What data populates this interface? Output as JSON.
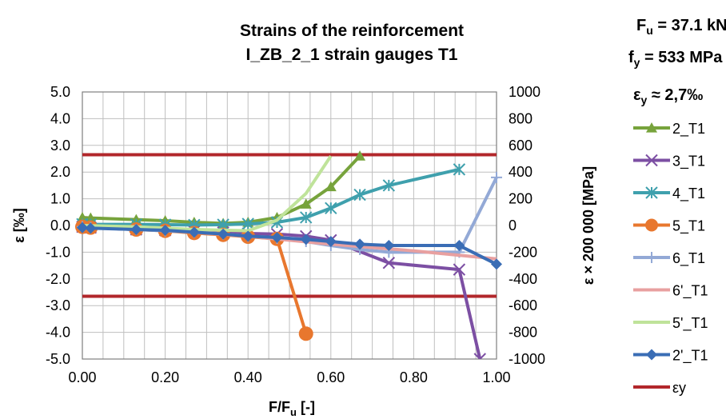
{
  "chart_data": {
    "type": "line",
    "title_lines": [
      "Strains of the reinforcement",
      "I_ZB_2_1 strain gauges T1"
    ],
    "xlabel": "F/F",
    "xlabel_sub": "u",
    "xlabel_suffix": " [-]",
    "ylabel_left": "ε [‰]",
    "ylabel_right": "ε × 200 000 [MPa]",
    "xlim": [
      0,
      1
    ],
    "ylim_left": [
      -5,
      5
    ],
    "ylim_right": [
      -1000,
      1000
    ],
    "x_ticks": [
      "0.00",
      "0.20",
      "0.40",
      "0.60",
      "0.80",
      "1.00"
    ],
    "x_tick_values": [
      0,
      0.2,
      0.4,
      0.6,
      0.8,
      1.0
    ],
    "y_left_ticks": [
      "5.0",
      "4.0",
      "3.0",
      "2.0",
      "1.0",
      "0.0",
      "-1.0",
      "-2.0",
      "-3.0",
      "-4.0",
      "-5.0"
    ],
    "y_left_tick_values": [
      5,
      4,
      3,
      2,
      1,
      0,
      -1,
      -2,
      -3,
      -4,
      -5
    ],
    "y_right_ticks": [
      "1000",
      "800",
      "600",
      "400",
      "200",
      "0",
      "-200",
      "-400",
      "-600",
      "-800",
      "-1000"
    ],
    "y_right_tick_values": [
      1000,
      800,
      600,
      400,
      200,
      0,
      -200,
      -400,
      -600,
      -800,
      -1000
    ],
    "grid": true,
    "legend_position": "right",
    "properties": {
      "fu": {
        "main": "F",
        "sub": "u",
        "rest": " = 37.1 kN"
      },
      "fy": {
        "main": "f",
        "sub": "y",
        "rest": " = 533 MPa"
      },
      "ey": {
        "main": "ε",
        "sub": "y",
        "rest": " ≈ 2,7‰"
      }
    },
    "series": [
      {
        "name": "2_T1",
        "color": "#77a33c",
        "marker": "triangle",
        "x": [
          0.0,
          0.02,
          0.13,
          0.2,
          0.27,
          0.34,
          0.4,
          0.47,
          0.54,
          0.6,
          0.67
        ],
        "y": [
          0.3,
          0.28,
          0.22,
          0.18,
          0.12,
          0.08,
          0.12,
          0.3,
          0.8,
          1.45,
          2.6
        ]
      },
      {
        "name": "3_T1",
        "color": "#7c4fa3",
        "marker": "x",
        "x": [
          0.0,
          0.02,
          0.13,
          0.2,
          0.27,
          0.34,
          0.4,
          0.47,
          0.54,
          0.6,
          0.74,
          0.91,
          0.96
        ],
        "y": [
          -0.05,
          -0.08,
          -0.15,
          -0.18,
          -0.22,
          -0.26,
          -0.3,
          -0.32,
          -0.4,
          -0.55,
          -1.4,
          -1.65,
          -5.0
        ]
      },
      {
        "name": "4_T1",
        "color": "#3fa0ad",
        "marker": "star",
        "x": [
          0.0,
          0.02,
          0.13,
          0.2,
          0.27,
          0.34,
          0.4,
          0.47,
          0.54,
          0.6,
          0.67,
          0.74,
          0.91
        ],
        "y": [
          0.05,
          0.04,
          0.04,
          0.03,
          0.02,
          0.03,
          0.06,
          0.12,
          0.3,
          0.65,
          1.15,
          1.5,
          2.1
        ]
      },
      {
        "name": "5_T1",
        "color": "#e8772e",
        "marker": "circle",
        "x": [
          0.0,
          0.02,
          0.13,
          0.2,
          0.27,
          0.34,
          0.4,
          0.47,
          0.54
        ],
        "y": [
          -0.05,
          -0.08,
          -0.15,
          -0.2,
          -0.28,
          -0.35,
          -0.42,
          -0.5,
          -4.05
        ]
      },
      {
        "name": "6_T1",
        "color": "#93a9d6",
        "marker": "plus",
        "x": [
          0.0,
          0.02,
          0.13,
          0.2,
          0.27,
          0.34,
          0.4,
          0.47,
          0.54,
          0.6,
          0.67,
          0.74,
          0.91,
          1.0
        ],
        "y": [
          -0.05,
          -0.08,
          -0.15,
          -0.2,
          -0.25,
          -0.32,
          -0.4,
          -0.48,
          -0.6,
          -0.75,
          -0.9,
          -1.0,
          -1.0,
          1.8
        ]
      },
      {
        "name": "6'_T1",
        "color": "#e8a0a0",
        "marker": "none",
        "x": [
          0.0,
          0.2,
          0.4,
          0.6,
          0.8,
          1.0
        ],
        "y": [
          -0.05,
          -0.18,
          -0.4,
          -0.7,
          -0.95,
          -1.25
        ]
      },
      {
        "name": "5'_T1",
        "color": "#bfe39a",
        "marker": "none",
        "x": [
          0.0,
          0.13,
          0.27,
          0.4,
          0.47,
          0.54,
          0.6
        ],
        "y": [
          0.0,
          -0.05,
          -0.15,
          -0.2,
          0.2,
          1.2,
          2.6
        ]
      },
      {
        "name": "2'_T1",
        "color": "#3a6db5",
        "marker": "diamond",
        "x": [
          0.0,
          0.02,
          0.13,
          0.2,
          0.27,
          0.34,
          0.4,
          0.47,
          0.54,
          0.6,
          0.67,
          0.74,
          0.91,
          1.0
        ],
        "y": [
          -0.08,
          -0.1,
          -0.15,
          -0.18,
          -0.25,
          -0.32,
          -0.4,
          -0.45,
          -0.52,
          -0.6,
          -0.7,
          -0.75,
          -0.75,
          -1.45
        ]
      },
      {
        "name": "εy",
        "color": "#b2272b",
        "marker": "none",
        "hline_values": [
          2.65,
          -2.65
        ]
      }
    ]
  }
}
